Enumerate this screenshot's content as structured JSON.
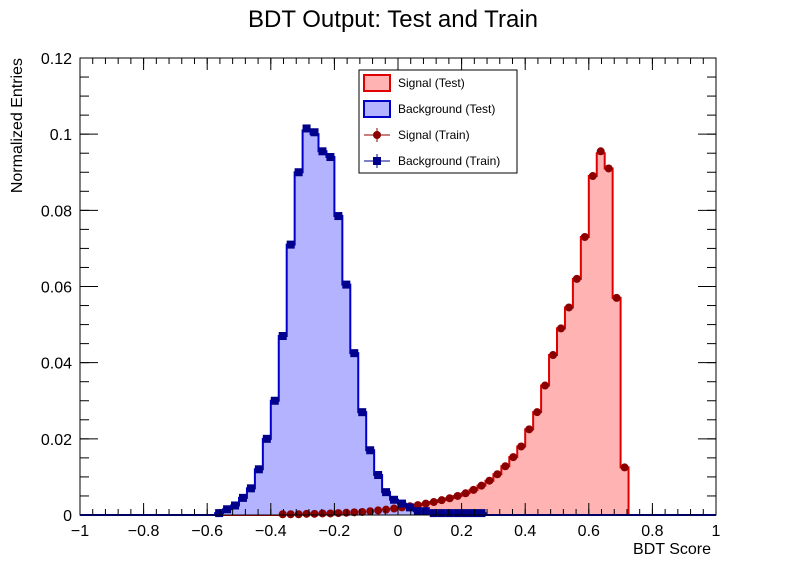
{
  "chart_data": {
    "type": "histogram",
    "title": "BDT Output: Test and Train",
    "xlabel": "BDT Score",
    "ylabel": "Normalized Entries",
    "xlim": [
      -1,
      1
    ],
    "ylim": [
      0,
      0.12
    ],
    "bin_width": 0.025,
    "x_ticks": [
      -1,
      -0.8,
      -0.6,
      -0.4,
      -0.2,
      0,
      0.2,
      0.4,
      0.6,
      0.8,
      1
    ],
    "x_tick_labels": [
      "−1",
      "−0.8",
      "−0.6",
      "−0.4",
      "−0.2",
      "0",
      "0.2",
      "0.4",
      "0.6",
      "0.8",
      "1"
    ],
    "y_ticks": [
      0,
      0.02,
      0.04,
      0.06,
      0.08,
      0.1,
      0.12
    ],
    "y_tick_labels": [
      "0",
      "0.02",
      "0.04",
      "0.06",
      "0.08",
      "0.1",
      "0.12"
    ],
    "grid": false,
    "legend_position": "top-center",
    "series": [
      {
        "name": "Signal (Test)",
        "style": "filled-step",
        "color": "#e00000",
        "fill": "#ffb3b3",
        "x": [
          -0.3625,
          -0.3375,
          -0.3125,
          -0.2875,
          -0.2625,
          -0.2375,
          -0.2125,
          -0.1875,
          -0.1625,
          -0.1375,
          -0.1125,
          -0.0875,
          -0.0625,
          -0.0375,
          -0.0125,
          0.0125,
          0.0375,
          0.0625,
          0.0875,
          0.1125,
          0.1375,
          0.1625,
          0.1875,
          0.2125,
          0.2375,
          0.2625,
          0.2875,
          0.3125,
          0.3375,
          0.3625,
          0.3875,
          0.4125,
          0.4375,
          0.4625,
          0.4875,
          0.5125,
          0.5375,
          0.5625,
          0.5875,
          0.6125,
          0.6375,
          0.6625,
          0.6875,
          0.7125
        ],
        "values": [
          0.0002,
          0.0002,
          0.0002,
          0.0003,
          0.0003,
          0.0004,
          0.0004,
          0.0005,
          0.0006,
          0.0007,
          0.0008,
          0.001,
          0.0012,
          0.0014,
          0.0017,
          0.002,
          0.0023,
          0.0026,
          0.003,
          0.0034,
          0.0039,
          0.0044,
          0.005,
          0.0057,
          0.0066,
          0.0077,
          0.009,
          0.0107,
          0.0128,
          0.0152,
          0.018,
          0.0225,
          0.027,
          0.034,
          0.042,
          0.049,
          0.0545,
          0.062,
          0.073,
          0.089,
          0.095,
          0.091,
          0.057,
          0.0125
        ]
      },
      {
        "name": "Background (Test)",
        "style": "filled-step",
        "color": "#0000c8",
        "fill": "#b3b3ff",
        "x": [
          -0.5625,
          -0.5375,
          -0.5125,
          -0.4875,
          -0.4625,
          -0.4375,
          -0.4125,
          -0.3875,
          -0.3625,
          -0.3375,
          -0.3125,
          -0.2875,
          -0.2625,
          -0.2375,
          -0.2125,
          -0.1875,
          -0.1625,
          -0.1375,
          -0.1125,
          -0.0875,
          -0.0625,
          -0.0375,
          -0.0125,
          0.0125,
          0.0375,
          0.0625,
          0.0875,
          0.1125,
          0.1375,
          0.1625,
          0.1875,
          0.2125,
          0.2375,
          0.2625
        ],
        "values": [
          0.0005,
          0.0015,
          0.0025,
          0.0045,
          0.007,
          0.012,
          0.02,
          0.03,
          0.047,
          0.071,
          0.09,
          0.101,
          0.1,
          0.0955,
          0.094,
          0.0785,
          0.0605,
          0.0425,
          0.027,
          0.017,
          0.0105,
          0.006,
          0.004,
          0.003,
          0.002,
          0.001,
          0.001,
          0.0005,
          0.0005,
          0.0005,
          0.0005,
          0.0005,
          0.0005,
          0.0005
        ]
      },
      {
        "name": "Signal (Train)",
        "style": "markers-circle",
        "color": "#8b0000",
        "x": [
          -0.3625,
          -0.3375,
          -0.3125,
          -0.2875,
          -0.2625,
          -0.2375,
          -0.2125,
          -0.1875,
          -0.1625,
          -0.1375,
          -0.1125,
          -0.0875,
          -0.0625,
          -0.0375,
          -0.0125,
          0.0125,
          0.0375,
          0.0625,
          0.0875,
          0.1125,
          0.1375,
          0.1625,
          0.1875,
          0.2125,
          0.2375,
          0.2625,
          0.2875,
          0.3125,
          0.3375,
          0.3625,
          0.3875,
          0.4125,
          0.4375,
          0.4625,
          0.4875,
          0.5125,
          0.5375,
          0.5625,
          0.5875,
          0.6125,
          0.6375,
          0.6625,
          0.6875,
          0.7125
        ],
        "values": [
          0.0002,
          0.0002,
          0.0002,
          0.0003,
          0.0003,
          0.0004,
          0.0004,
          0.0005,
          0.0006,
          0.0007,
          0.0008,
          0.001,
          0.0012,
          0.0014,
          0.0017,
          0.002,
          0.0023,
          0.0026,
          0.003,
          0.0034,
          0.0039,
          0.0044,
          0.005,
          0.0057,
          0.0066,
          0.0077,
          0.009,
          0.0107,
          0.0128,
          0.0152,
          0.018,
          0.0225,
          0.027,
          0.034,
          0.042,
          0.049,
          0.0545,
          0.062,
          0.073,
          0.089,
          0.0955,
          0.091,
          0.057,
          0.0125
        ]
      },
      {
        "name": "Background (Train)",
        "style": "markers-square",
        "color": "#00008b",
        "x": [
          -0.5625,
          -0.5375,
          -0.5125,
          -0.4875,
          -0.4625,
          -0.4375,
          -0.4125,
          -0.3875,
          -0.3625,
          -0.3375,
          -0.3125,
          -0.2875,
          -0.2625,
          -0.2375,
          -0.2125,
          -0.1875,
          -0.1625,
          -0.1375,
          -0.1125,
          -0.0875,
          -0.0625,
          -0.0375,
          -0.0125,
          0.0125,
          0.0375,
          0.0625,
          0.0875,
          0.1125,
          0.1375,
          0.1625,
          0.1875,
          0.2125,
          0.2375,
          0.2625
        ],
        "values": [
          0.0005,
          0.0015,
          0.0025,
          0.0045,
          0.007,
          0.012,
          0.02,
          0.03,
          0.047,
          0.071,
          0.09,
          0.1015,
          0.1005,
          0.0955,
          0.094,
          0.0785,
          0.0605,
          0.0425,
          0.027,
          0.017,
          0.0105,
          0.006,
          0.004,
          0.003,
          0.002,
          0.001,
          0.001,
          0.0005,
          0.0005,
          0.0005,
          0.0005,
          0.0005,
          0.0005,
          0.0005
        ]
      }
    ]
  }
}
